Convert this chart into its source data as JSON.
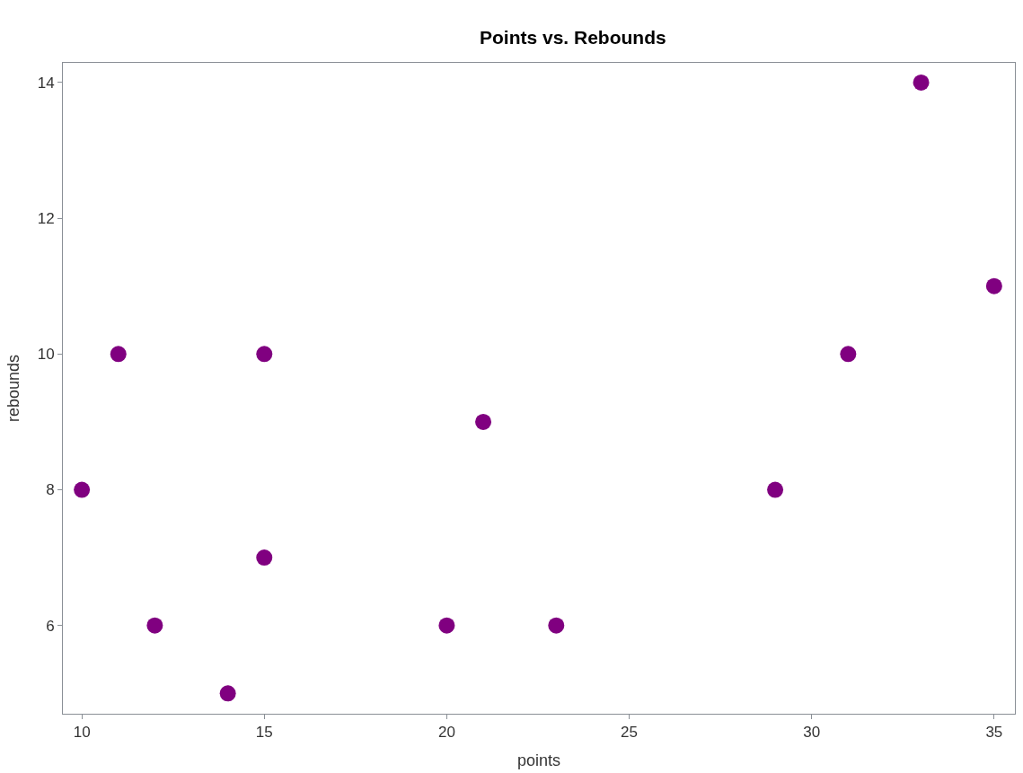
{
  "chart_data": {
    "type": "scatter",
    "title": "Points vs. Rebounds",
    "xlabel": "points",
    "ylabel": "rebounds",
    "x": [
      10,
      11,
      12,
      14,
      15,
      15,
      20,
      21,
      23,
      29,
      31,
      33,
      35
    ],
    "series": [
      {
        "color": "#800080",
        "values": [
          8,
          10,
          6,
          5,
          10,
          7,
          6,
          9,
          6,
          8,
          10,
          14,
          11
        ]
      }
    ],
    "xlim": [
      9.48,
      35.57
    ],
    "xticks": [
      10,
      15,
      20,
      25,
      30,
      35
    ],
    "ylim": [
      4.7,
      14.29
    ],
    "yticks": [
      6,
      8,
      10,
      12,
      14
    ],
    "marker": "circle"
  }
}
